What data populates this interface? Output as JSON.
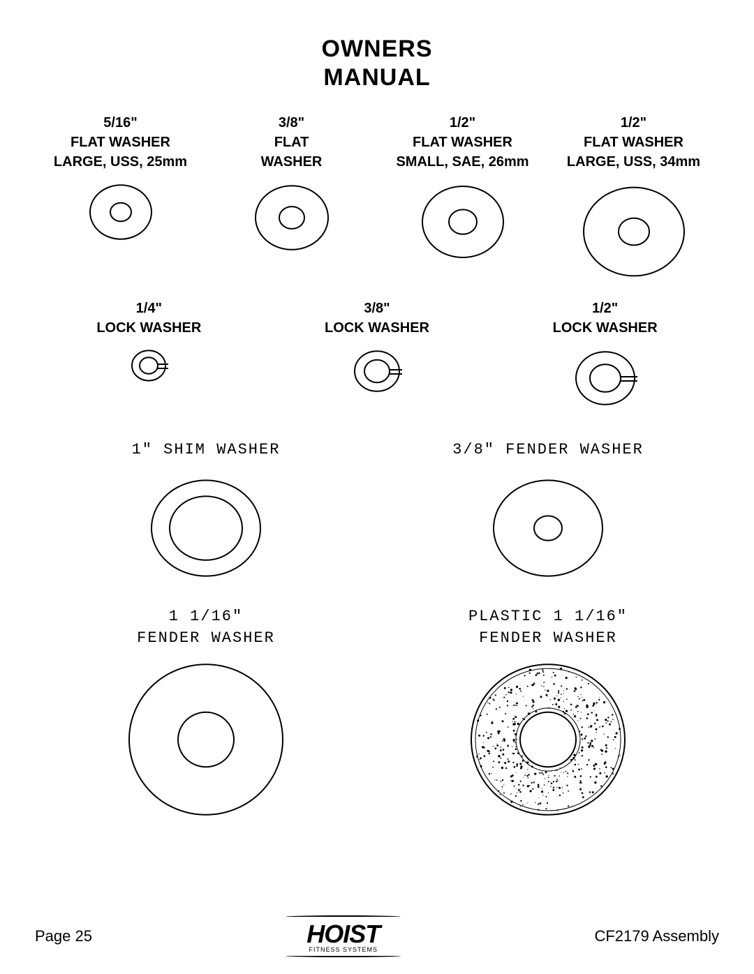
{
  "title_line1": "OWNERS",
  "title_line2": "MANUAL",
  "stroke": "#000000",
  "bg": "#ffffff",
  "stroke_width": 2,
  "flat_washers": [
    {
      "size": "5/16\"",
      "name_l1": "FLAT WASHER",
      "name_l2": "LARGE, USS, 25mm",
      "outer_r": 44,
      "inner_r": 15
    },
    {
      "size": "3/8\"",
      "name_l1": "FLAT",
      "name_l2": "WASHER",
      "outer_r": 52,
      "inner_r": 18
    },
    {
      "size": "1/2\"",
      "name_l1": "FLAT WASHER",
      "name_l2": "SMALL, SAE, 26mm",
      "outer_r": 58,
      "inner_r": 20
    },
    {
      "size": "1/2\"",
      "name_l1": "FLAT WASHER",
      "name_l2": "LARGE, USS, 34mm",
      "outer_r": 72,
      "inner_r": 22
    }
  ],
  "lock_washers": [
    {
      "size": "1/4\"",
      "name": "LOCK WASHER",
      "outer_r": 24,
      "inner_r": 13
    },
    {
      "size": "3/8\"",
      "name": "LOCK WASHER",
      "outer_r": 32,
      "inner_r": 18
    },
    {
      "size": "1/2\"",
      "name": "LOCK WASHER",
      "outer_r": 42,
      "inner_r": 22
    }
  ],
  "row3": [
    {
      "label": "1\"  SHIM  WASHER",
      "outer_r": 78,
      "inner_r": 52
    },
    {
      "label": "3/8\"  FENDER  WASHER",
      "outer_r": 78,
      "inner_r": 20
    }
  ],
  "row4": [
    {
      "label_l1": "1  1/16\"",
      "label_l2": "FENDER  WASHER",
      "outer_r": 110,
      "inner_r": 40,
      "textured": false
    },
    {
      "label_l1": "PLASTIC  1  1/16\"",
      "label_l2": "FENDER  WASHER",
      "outer_r": 110,
      "inner_r": 40,
      "textured": true
    }
  ],
  "footer": {
    "page": "Page 25",
    "logo_main": "HOIST",
    "logo_sub": "FITNESS SYSTEMS",
    "assembly": "CF2179 Assembly"
  }
}
